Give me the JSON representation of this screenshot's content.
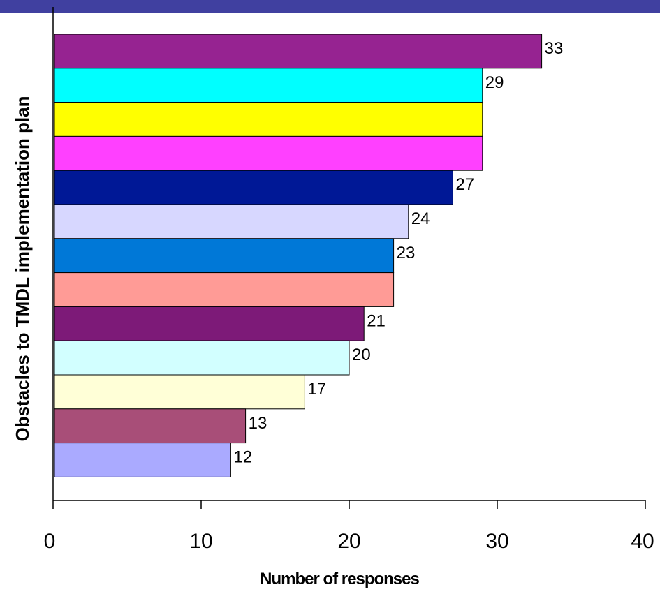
{
  "header": {
    "band_color": "#4040a0"
  },
  "chart_data": {
    "type": "bar",
    "orientation": "horizontal",
    "xlabel": "Number of responses",
    "ylabel": "Obstacles to TMDL implementation plan",
    "xlim": [
      0,
      40
    ],
    "xticks": [
      0,
      10,
      20,
      30,
      40
    ],
    "grid": false,
    "legend": "none",
    "bars": [
      {
        "value": 33,
        "label": "33",
        "color": "#962391"
      },
      {
        "value": 29,
        "label": "29",
        "color": "#00ffff"
      },
      {
        "value": 29,
        "label": "",
        "color": "#ffff00"
      },
      {
        "value": 29,
        "label": "",
        "color": "#ff40ff"
      },
      {
        "value": 27,
        "label": "27",
        "color": "#001896"
      },
      {
        "value": 24,
        "label": "24",
        "color": "#d7d7ff"
      },
      {
        "value": 23,
        "label": "23",
        "color": "#0078d7"
      },
      {
        "value": 23,
        "label": "",
        "color": "#ff9b96"
      },
      {
        "value": 21,
        "label": "21",
        "color": "#7d1a78"
      },
      {
        "value": 20,
        "label": "20",
        "color": "#d2ffff"
      },
      {
        "value": 17,
        "label": "17",
        "color": "#ffffd7"
      },
      {
        "value": 13,
        "label": "13",
        "color": "#a84e78"
      },
      {
        "value": 12,
        "label": "12",
        "color": "#aaaaff"
      }
    ]
  }
}
